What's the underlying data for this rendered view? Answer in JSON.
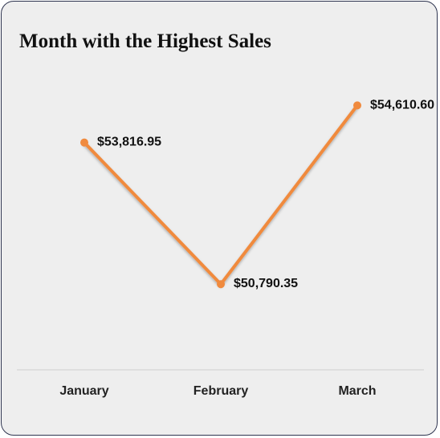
{
  "chart_data": {
    "type": "line",
    "title": "Month with the Highest Sales",
    "categories": [
      "January",
      "February",
      "March"
    ],
    "values": [
      53816.95,
      50790.35,
      54610.6
    ],
    "data_labels": [
      "$53,816.95",
      "$50,790.35",
      "$54,610.60"
    ],
    "xlabel": "",
    "ylabel": "",
    "ylim": [
      49200,
      55800
    ],
    "grid": false,
    "legend": "none",
    "colors": {
      "line": "#f08a3e",
      "marker": "#f08a3e",
      "background": "#eeeeee",
      "border": "#2f3550",
      "axis": "#cfcfcf"
    }
  }
}
